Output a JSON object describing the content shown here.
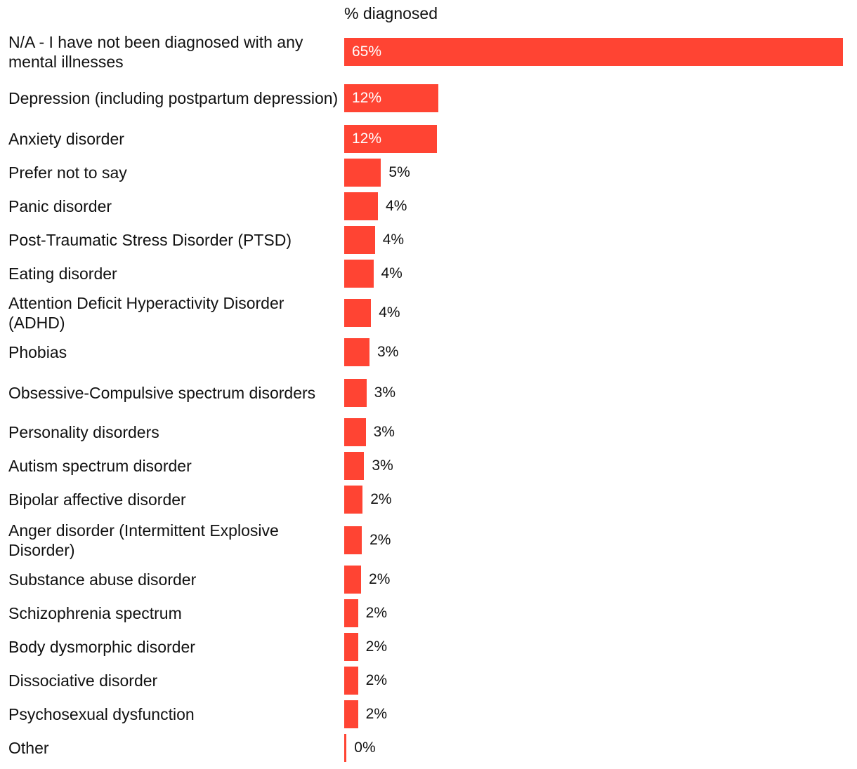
{
  "chart_data": {
    "type": "bar",
    "orientation": "horizontal",
    "series_header": "% diagnosed",
    "bar_color": "#ff4433",
    "xlim": [
      0,
      65
    ],
    "categories": [
      "N/A - I have not been diagnosed with any mental illnesses",
      "Depression (including postpartum depression)",
      "Anxiety disorder",
      "Prefer not to say",
      "Panic disorder",
      "Post-Traumatic Stress Disorder (PTSD)",
      "Eating disorder",
      "Attention Deficit Hyperactivity Disorder (ADHD)",
      "Phobias",
      "Obsessive-Compulsive spectrum disorders",
      "Personality disorders",
      "Autism spectrum disorder",
      "Bipolar affective disorder",
      "Anger disorder (Intermittent Explosive Disorder)",
      "Substance abuse disorder",
      "Schizophrenia spectrum",
      "Body dysmorphic disorder",
      "Dissociative disorder",
      "Psychosexual dysfunction",
      "Other"
    ],
    "values": [
      65,
      12.3,
      12.1,
      4.8,
      4.4,
      4.0,
      3.8,
      3.5,
      3.3,
      2.9,
      2.8,
      2.6,
      2.4,
      2.3,
      2.2,
      1.8,
      1.8,
      1.8,
      1.8,
      0.3
    ],
    "labels": [
      "65%",
      "12%",
      "12%",
      "5%",
      "4%",
      "4%",
      "4%",
      "4%",
      "3%",
      "3%",
      "3%",
      "3%",
      "2%",
      "2%",
      "2%",
      "2%",
      "2%",
      "2%",
      "2%",
      "0%"
    ]
  }
}
